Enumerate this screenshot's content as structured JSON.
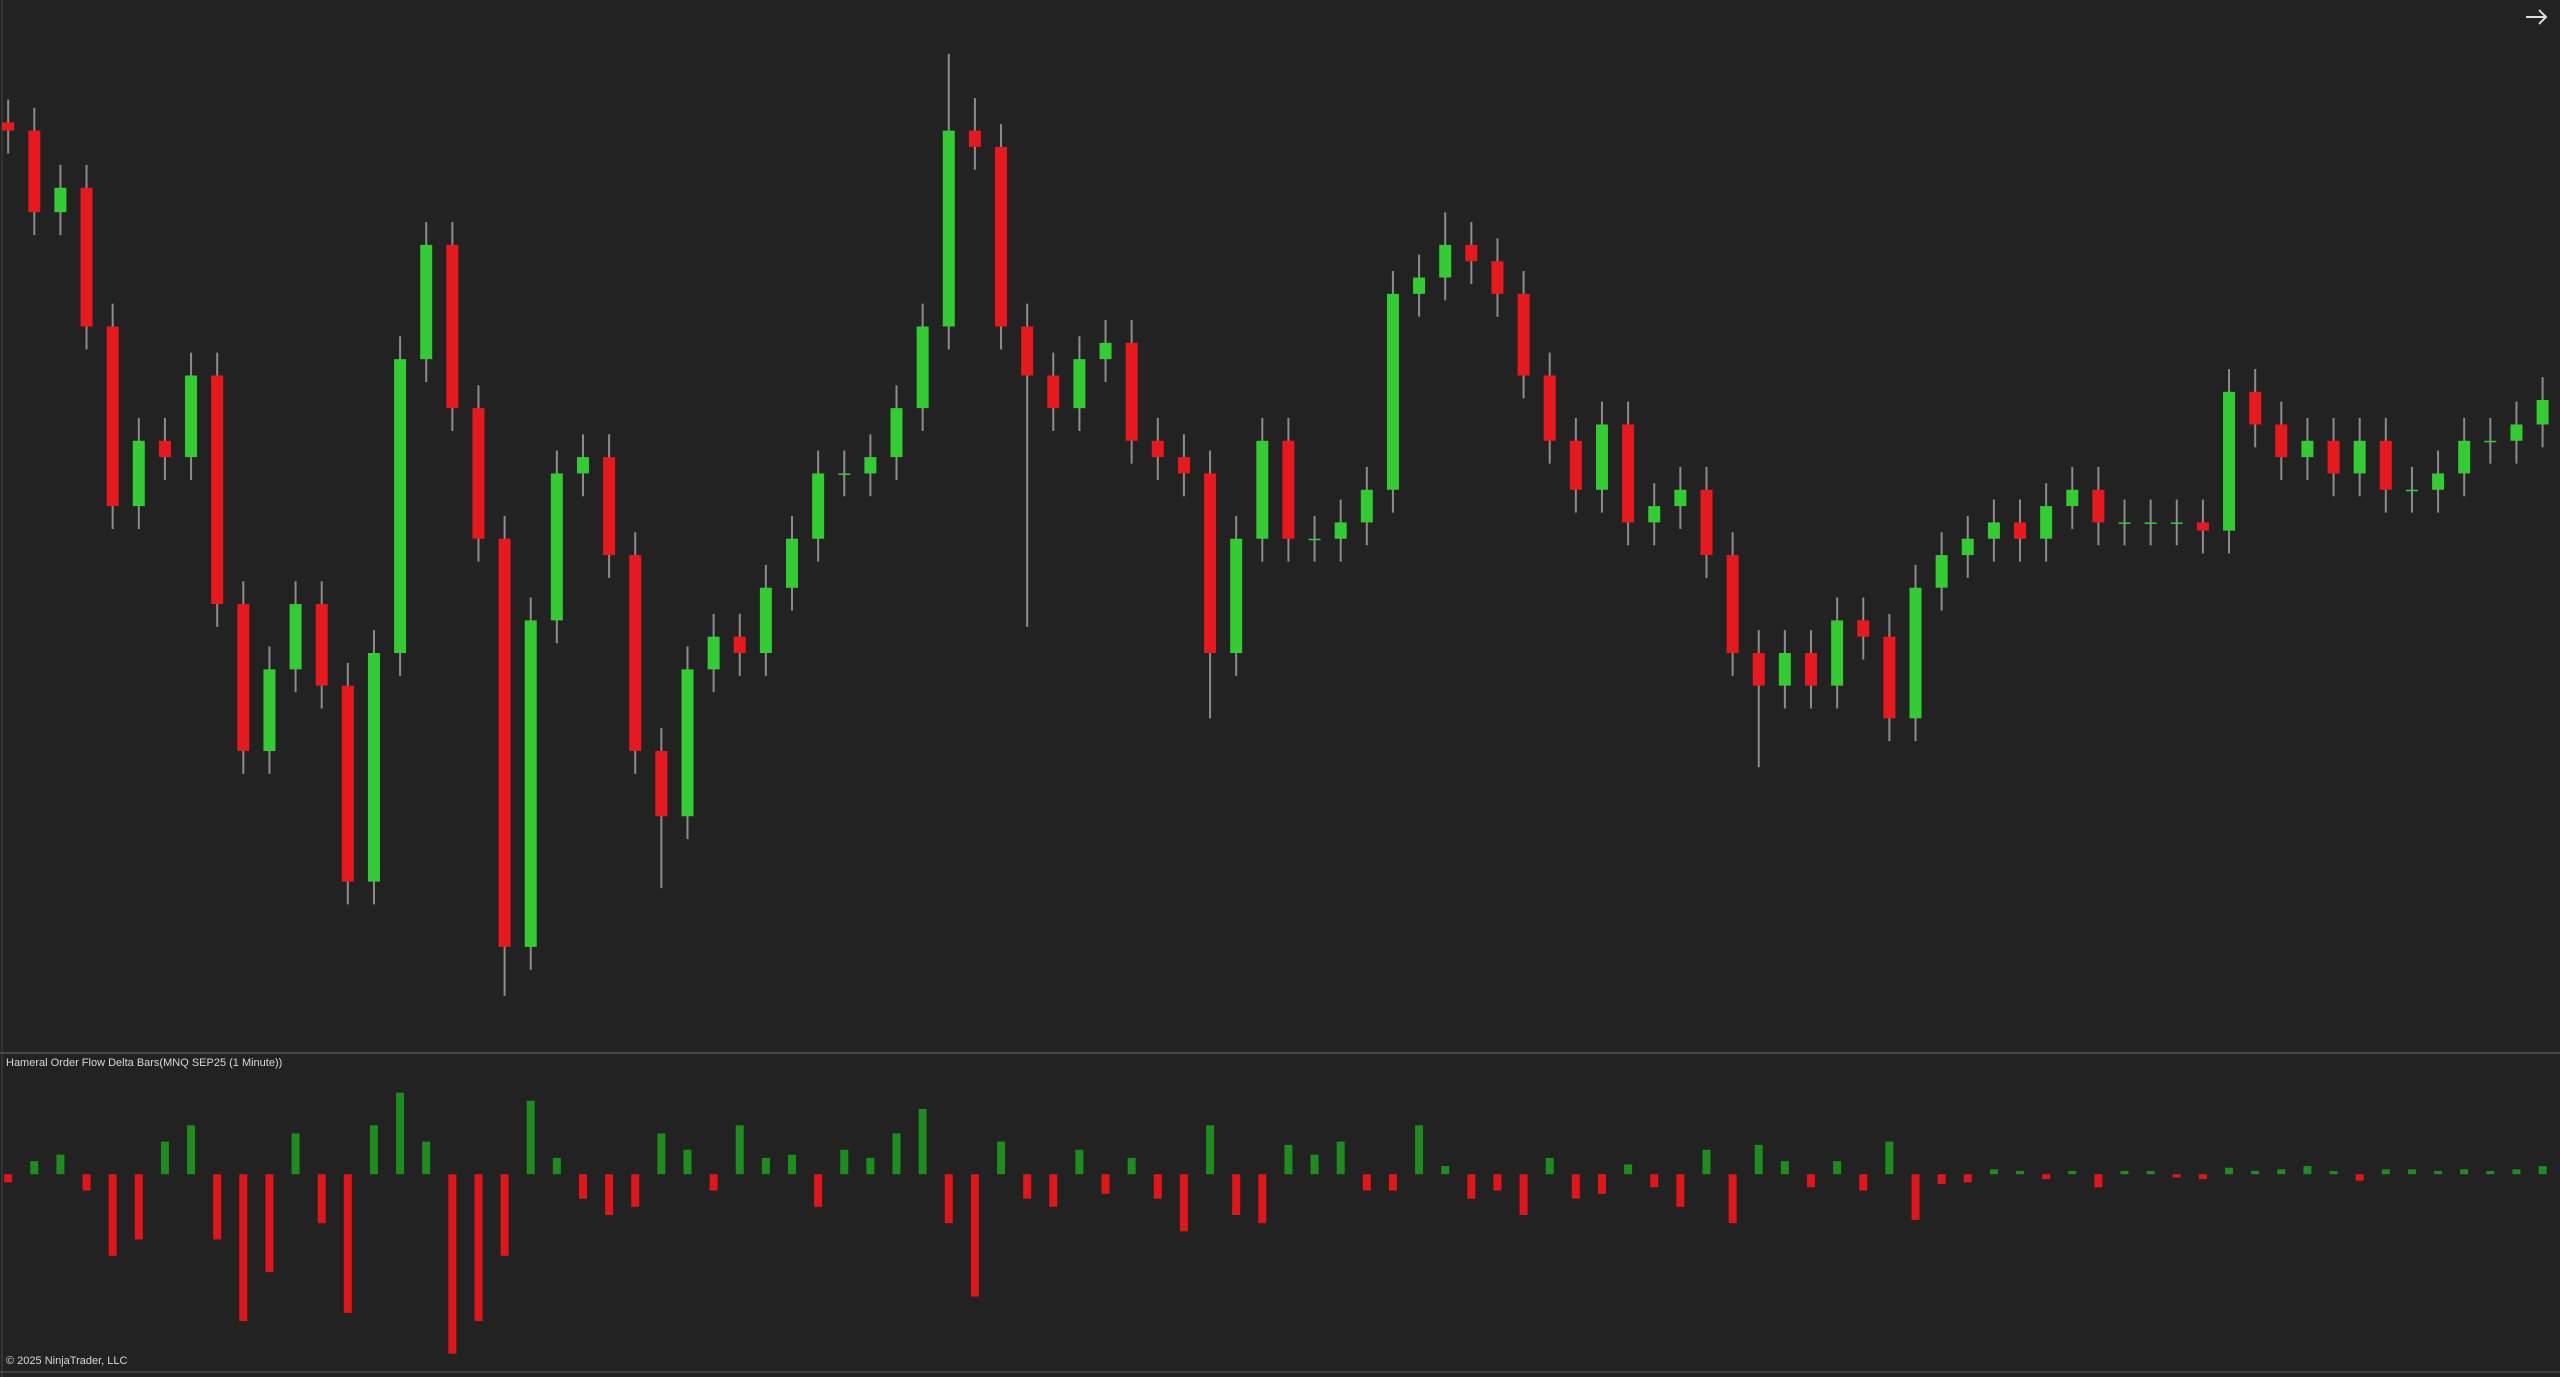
{
  "chart_data": [
    {
      "type": "candlestick",
      "up_color": "#33cc33",
      "down_color": "#e8191e",
      "wick_color": "#8c8c8c",
      "ylim": [
        0,
        645
      ],
      "open": [
        570,
        565,
        515,
        530,
        445,
        335,
        375,
        365,
        415,
        275,
        185,
        235,
        275,
        225,
        105,
        245,
        425,
        495,
        395,
        315,
        65,
        265,
        355,
        365,
        305,
        185,
        145,
        235,
        255,
        245,
        285,
        315,
        355,
        355,
        365,
        395,
        445,
        565,
        555,
        445,
        415,
        395,
        425,
        435,
        375,
        365,
        355,
        245,
        315,
        375,
        315,
        315,
        325,
        345,
        465,
        475,
        495,
        485,
        465,
        415,
        375,
        345,
        385,
        325,
        335,
        345,
        305,
        245,
        225,
        245,
        225,
        265,
        255,
        205,
        285,
        305,
        315,
        325,
        315,
        335,
        345,
        325,
        325,
        325,
        325,
        320,
        405,
        385,
        365,
        375,
        355,
        375,
        345,
        345,
        355,
        375,
        375,
        385
      ],
      "high": [
        584,
        579,
        544,
        544,
        459,
        389,
        389,
        429,
        429,
        289,
        249,
        289,
        289,
        239,
        259,
        439,
        509,
        509,
        409,
        329,
        279,
        369,
        379,
        379,
        319,
        199,
        249,
        269,
        269,
        299,
        329,
        369,
        369,
        379,
        409,
        459,
        612,
        585,
        569,
        459,
        429,
        439,
        449,
        449,
        389,
        379,
        369,
        329,
        389,
        389,
        329,
        339,
        359,
        479,
        489,
        515,
        509,
        499,
        479,
        429,
        389,
        399,
        399,
        349,
        359,
        359,
        319,
        259,
        259,
        259,
        279,
        279,
        269,
        299,
        319,
        329,
        339,
        339,
        349,
        359,
        359,
        339,
        339,
        339,
        339,
        419,
        419,
        399,
        389,
        389,
        389,
        389,
        359,
        369,
        389,
        389,
        399,
        414
      ],
      "low": [
        551,
        501,
        501,
        431,
        321,
        321,
        351,
        351,
        261,
        171,
        171,
        221,
        211,
        91,
        91,
        231,
        411,
        381,
        301,
        35,
        51,
        251,
        341,
        291,
        171,
        101,
        131,
        221,
        231,
        231,
        271,
        301,
        341,
        341,
        351,
        381,
        431,
        541,
        431,
        261,
        381,
        381,
        411,
        361,
        351,
        341,
        205,
        231,
        301,
        301,
        301,
        301,
        311,
        331,
        451,
        461,
        471,
        451,
        401,
        361,
        331,
        331,
        311,
        311,
        321,
        291,
        231,
        175,
        211,
        211,
        211,
        241,
        191,
        191,
        271,
        291,
        301,
        301,
        301,
        321,
        311,
        311,
        311,
        311,
        306,
        306,
        371,
        351,
        351,
        341,
        341,
        331,
        331,
        331,
        341,
        361,
        361,
        371
      ],
      "close": [
        565,
        515,
        530,
        445,
        335,
        375,
        365,
        415,
        275,
        185,
        235,
        275,
        225,
        105,
        245,
        425,
        495,
        395,
        315,
        65,
        265,
        355,
        365,
        305,
        185,
        145,
        235,
        255,
        245,
        285,
        315,
        355,
        355,
        365,
        395,
        445,
        565,
        555,
        445,
        415,
        395,
        425,
        435,
        375,
        365,
        355,
        245,
        315,
        375,
        315,
        315,
        325,
        345,
        465,
        475,
        495,
        485,
        465,
        415,
        375,
        345,
        385,
        325,
        335,
        345,
        305,
        245,
        225,
        245,
        225,
        265,
        255,
        205,
        285,
        305,
        315,
        325,
        315,
        335,
        345,
        325,
        325,
        325,
        325,
        320,
        405,
        385,
        365,
        375,
        355,
        375,
        345,
        345,
        355,
        375,
        375,
        385,
        400
      ]
    },
    {
      "type": "bar",
      "title": "Hameral Order Flow Delta Bars(MNQ SEP25 (1 Minute))",
      "positive_color": "#1e8c1e",
      "negative_color": "#e0161b",
      "ylim": [
        -120,
        70
      ],
      "values": [
        -5,
        8,
        12,
        -10,
        -50,
        -40,
        20,
        30,
        -40,
        -90,
        -60,
        25,
        -30,
        -85,
        30,
        50,
        20,
        -110,
        -90,
        -50,
        45,
        10,
        -15,
        -25,
        -20,
        25,
        15,
        -10,
        30,
        10,
        12,
        -20,
        15,
        10,
        25,
        40,
        -30,
        -75,
        20,
        -15,
        -20,
        15,
        -12,
        10,
        -15,
        -35,
        30,
        -25,
        -30,
        18,
        12,
        20,
        -10,
        -10,
        30,
        5,
        -15,
        -10,
        -25,
        10,
        -15,
        -12,
        6,
        -8,
        -20,
        15,
        -30,
        18,
        8,
        -8,
        8,
        -10,
        20,
        -28,
        -6,
        -5,
        3,
        2,
        -3,
        2,
        -8,
        2,
        2,
        -2,
        -3,
        4,
        2,
        3,
        5,
        2,
        -4,
        3,
        3,
        2,
        3,
        2,
        3,
        5
      ]
    }
  ],
  "footer": "© 2025 NinjaTrader, LLC"
}
